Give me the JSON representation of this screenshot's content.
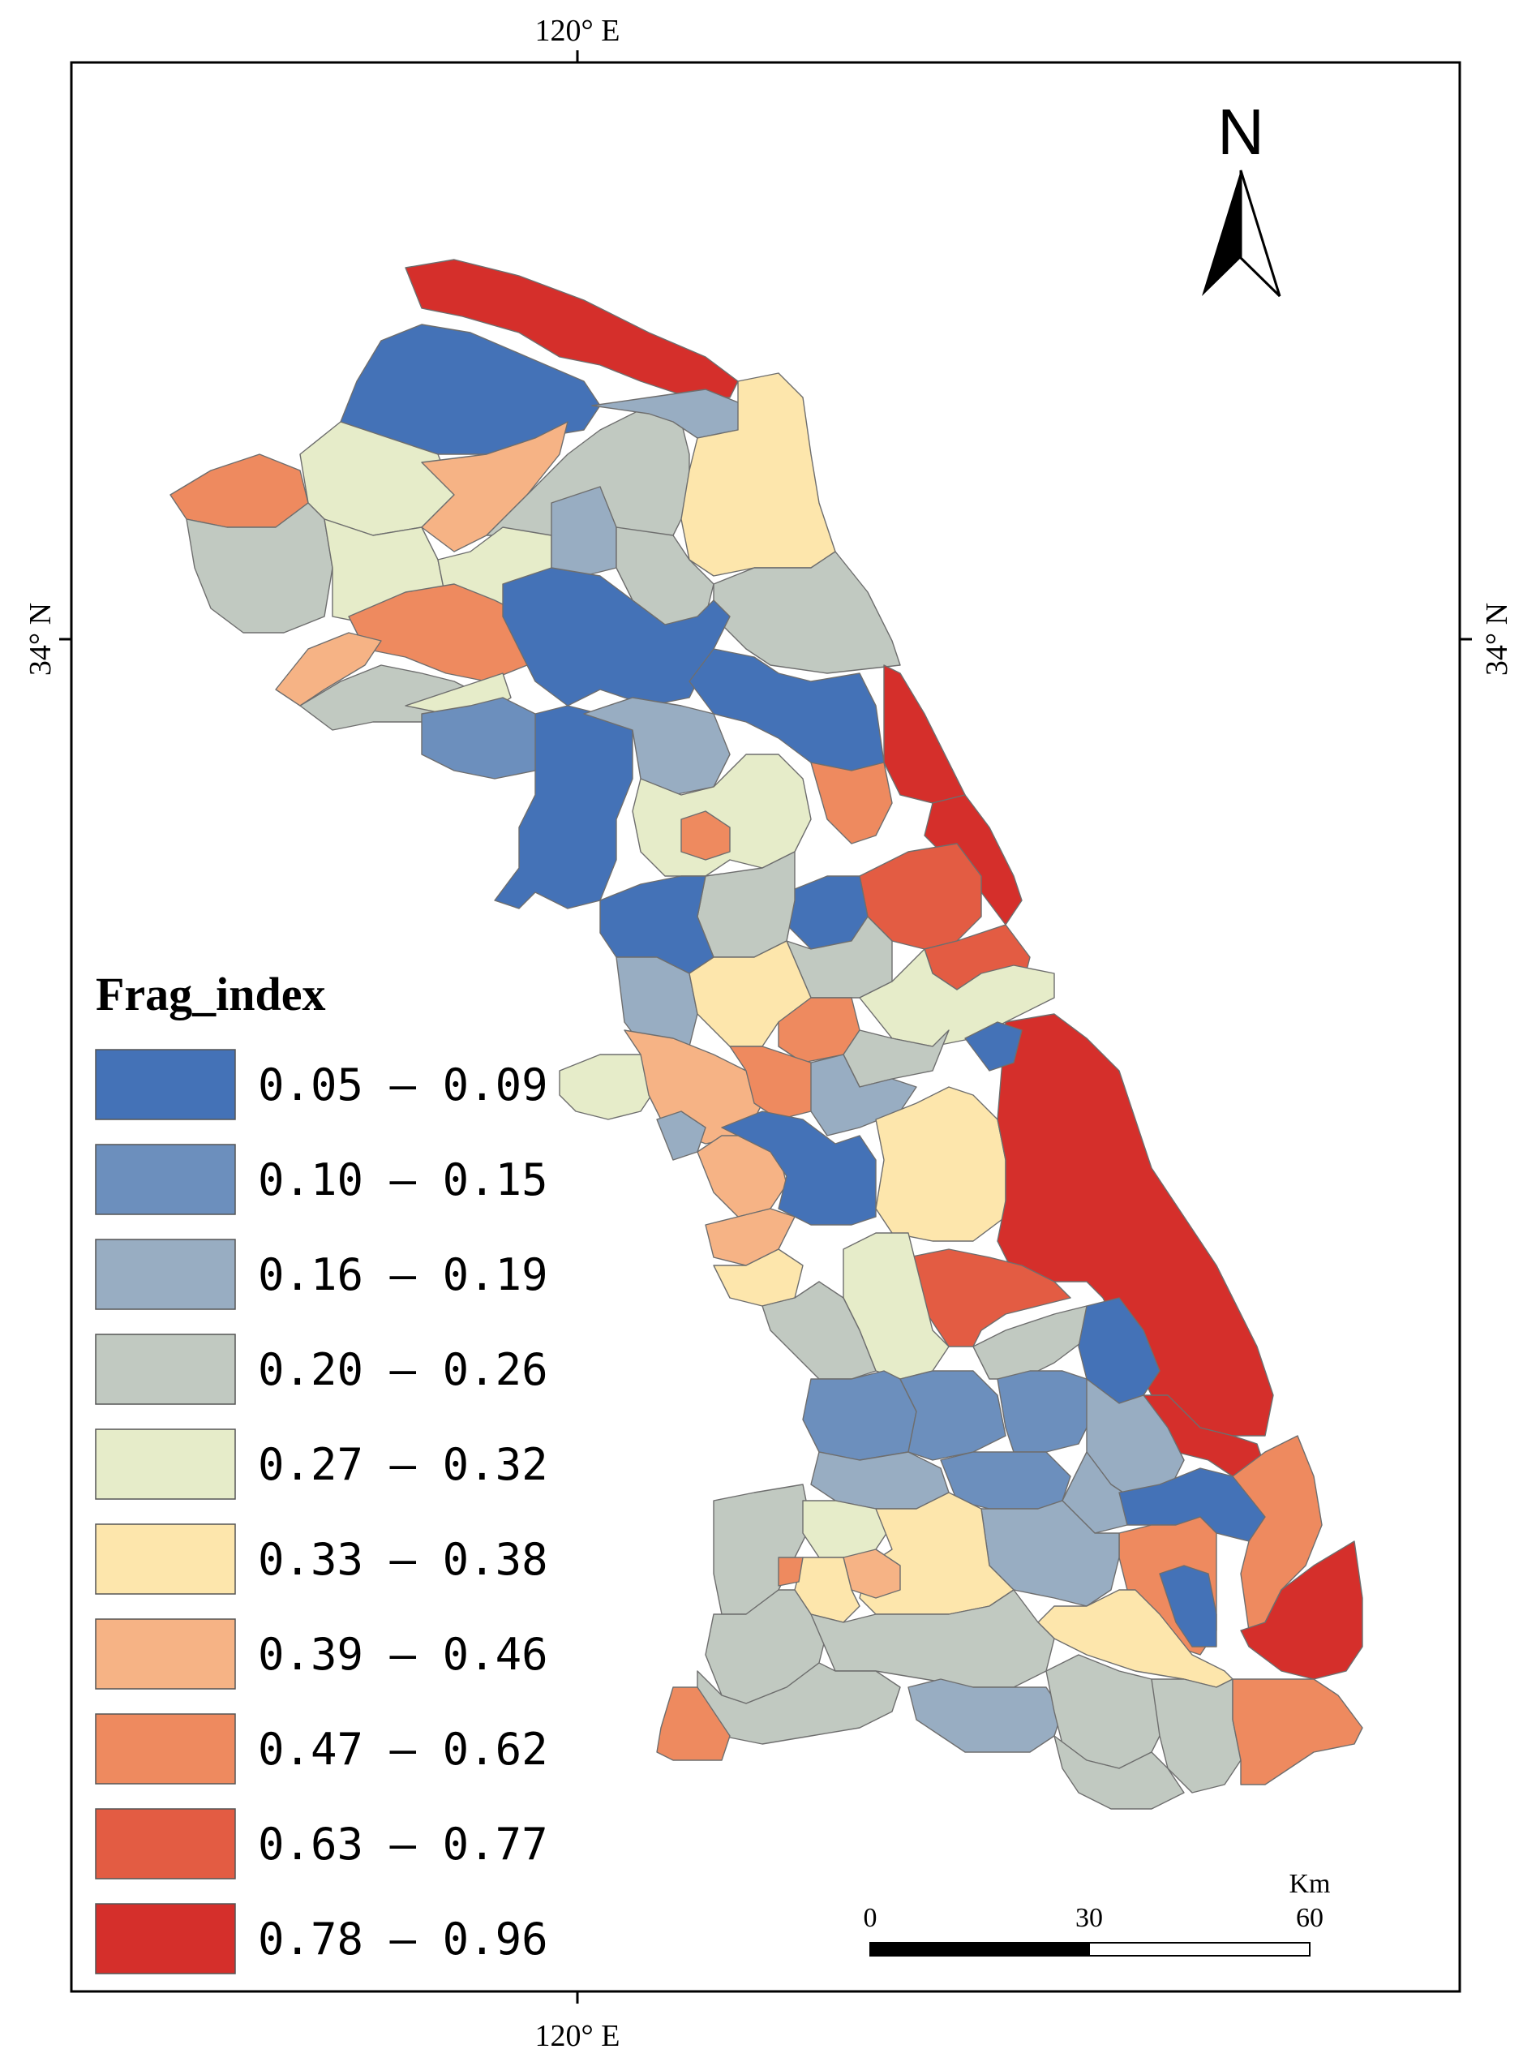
{
  "graticule": {
    "lon_label_top": "120° E",
    "lon_label_bottom": "120° E",
    "lat_label_left": "34° N",
    "lat_label_right": "34° N"
  },
  "north_arrow": {
    "label": "N",
    "icon": "north-arrow-icon"
  },
  "scale_bar": {
    "unit": "Km",
    "ticks": [
      "0",
      "30",
      "60"
    ]
  },
  "legend": {
    "title": "Frag_index",
    "classes": [
      {
        "label": "0.05 – 0.09",
        "color": "#4472b7"
      },
      {
        "label": "0.10 – 0.15",
        "color": "#6c8fbd"
      },
      {
        "label": "0.16 – 0.19",
        "color": "#98adc2"
      },
      {
        "label": "0.20 – 0.26",
        "color": "#c1c9c1"
      },
      {
        "label": "0.27 – 0.32",
        "color": "#e6ecc9"
      },
      {
        "label": "0.33 – 0.38",
        "color": "#fde6ac"
      },
      {
        "label": "0.39 – 0.46",
        "color": "#f6b385"
      },
      {
        "label": "0.47 – 0.62",
        "color": "#ee8a5f"
      },
      {
        "label": "0.63 – 0.77",
        "color": "#e35c43"
      },
      {
        "label": "0.78 – 0.96",
        "color": "#d52f2b"
      }
    ]
  }
}
